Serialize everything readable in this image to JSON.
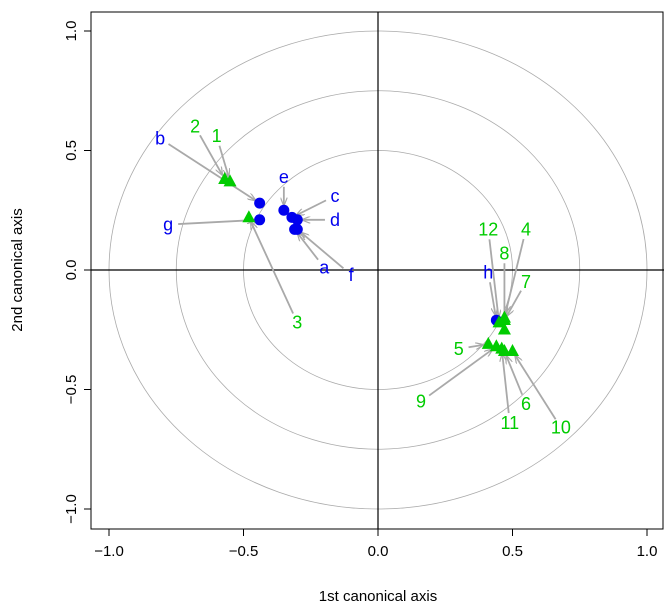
{
  "chart_data": {
    "type": "scatter",
    "title": "",
    "xlabel": "1st canonical axis",
    "ylabel": "2nd canonical axis",
    "xlim": [
      -1.0,
      1.0
    ],
    "ylim": [
      -1.0,
      1.0
    ],
    "x_ticks": [
      "−1.0",
      "−0.5",
      "0.0",
      "0.5",
      "1.0"
    ],
    "y_ticks": [
      "−1.0",
      "−0.5",
      "0.0",
      "0.5",
      "1.0"
    ],
    "x_tick_values": [
      -1.0,
      -0.5,
      0.0,
      0.5,
      1.0
    ],
    "y_tick_values": [
      -1.0,
      -0.5,
      0.0,
      0.5,
      1.0
    ],
    "circle_radii": [
      0.5,
      0.75,
      1.0
    ],
    "grid": false,
    "colors": {
      "circles": "#aaaaaa",
      "arrows": "#a9a9a9",
      "axes": "#000000",
      "blue_series": "#0000ee",
      "green_series": "#00cc00"
    },
    "series": [
      {
        "marker": "circle",
        "color": "#0000ee",
        "points": [
          {
            "label": "a",
            "x": -0.31,
            "y": 0.17,
            "label_x": -0.2,
            "label_y": 0.01
          },
          {
            "label": "b",
            "x": -0.44,
            "y": 0.28,
            "label_x": -0.81,
            "label_y": 0.55
          },
          {
            "label": "c",
            "x": -0.32,
            "y": 0.22,
            "label_x": -0.16,
            "label_y": 0.31
          },
          {
            "label": "d",
            "x": -0.3,
            "y": 0.21,
            "label_x": -0.16,
            "label_y": 0.21
          },
          {
            "label": "e",
            "x": -0.35,
            "y": 0.25,
            "label_x": -0.35,
            "label_y": 0.39
          },
          {
            "label": "f",
            "x": -0.3,
            "y": 0.17,
            "label_x": -0.1,
            "label_y": -0.02
          },
          {
            "label": "g",
            "x": -0.44,
            "y": 0.21,
            "label_x": -0.78,
            "label_y": 0.19
          },
          {
            "label": "h",
            "x": 0.44,
            "y": -0.21,
            "label_x": 0.41,
            "label_y": -0.01
          }
        ]
      },
      {
        "marker": "triangle",
        "color": "#00cc00",
        "points": [
          {
            "label": "1",
            "x": -0.55,
            "y": 0.37,
            "label_x": -0.6,
            "label_y": 0.56
          },
          {
            "label": "2",
            "x": -0.57,
            "y": 0.38,
            "label_x": -0.68,
            "label_y": 0.6
          },
          {
            "label": "3",
            "x": -0.48,
            "y": 0.22,
            "label_x": -0.3,
            "label_y": -0.22
          },
          {
            "label": "4",
            "x": 0.47,
            "y": -0.2,
            "label_x": 0.55,
            "label_y": 0.17
          },
          {
            "label": "5",
            "x": 0.41,
            "y": -0.31,
            "label_x": 0.3,
            "label_y": -0.33
          },
          {
            "label": "6",
            "x": 0.47,
            "y": -0.34,
            "label_x": 0.55,
            "label_y": -0.56
          },
          {
            "label": "7",
            "x": 0.47,
            "y": -0.21,
            "label_x": 0.55,
            "label_y": -0.05
          },
          {
            "label": "8",
            "x": 0.47,
            "y": -0.25,
            "label_x": 0.47,
            "label_y": 0.07
          },
          {
            "label": "9",
            "x": 0.44,
            "y": -0.32,
            "label_x": 0.16,
            "label_y": -0.55
          },
          {
            "label": "10",
            "x": 0.5,
            "y": -0.34,
            "label_x": 0.68,
            "label_y": -0.66
          },
          {
            "label": "11",
            "x": 0.46,
            "y": -0.33,
            "label_x": 0.49,
            "label_y": -0.64
          },
          {
            "label": "12",
            "x": 0.45,
            "y": -0.22,
            "label_x": 0.41,
            "label_y": 0.17
          }
        ]
      }
    ]
  }
}
